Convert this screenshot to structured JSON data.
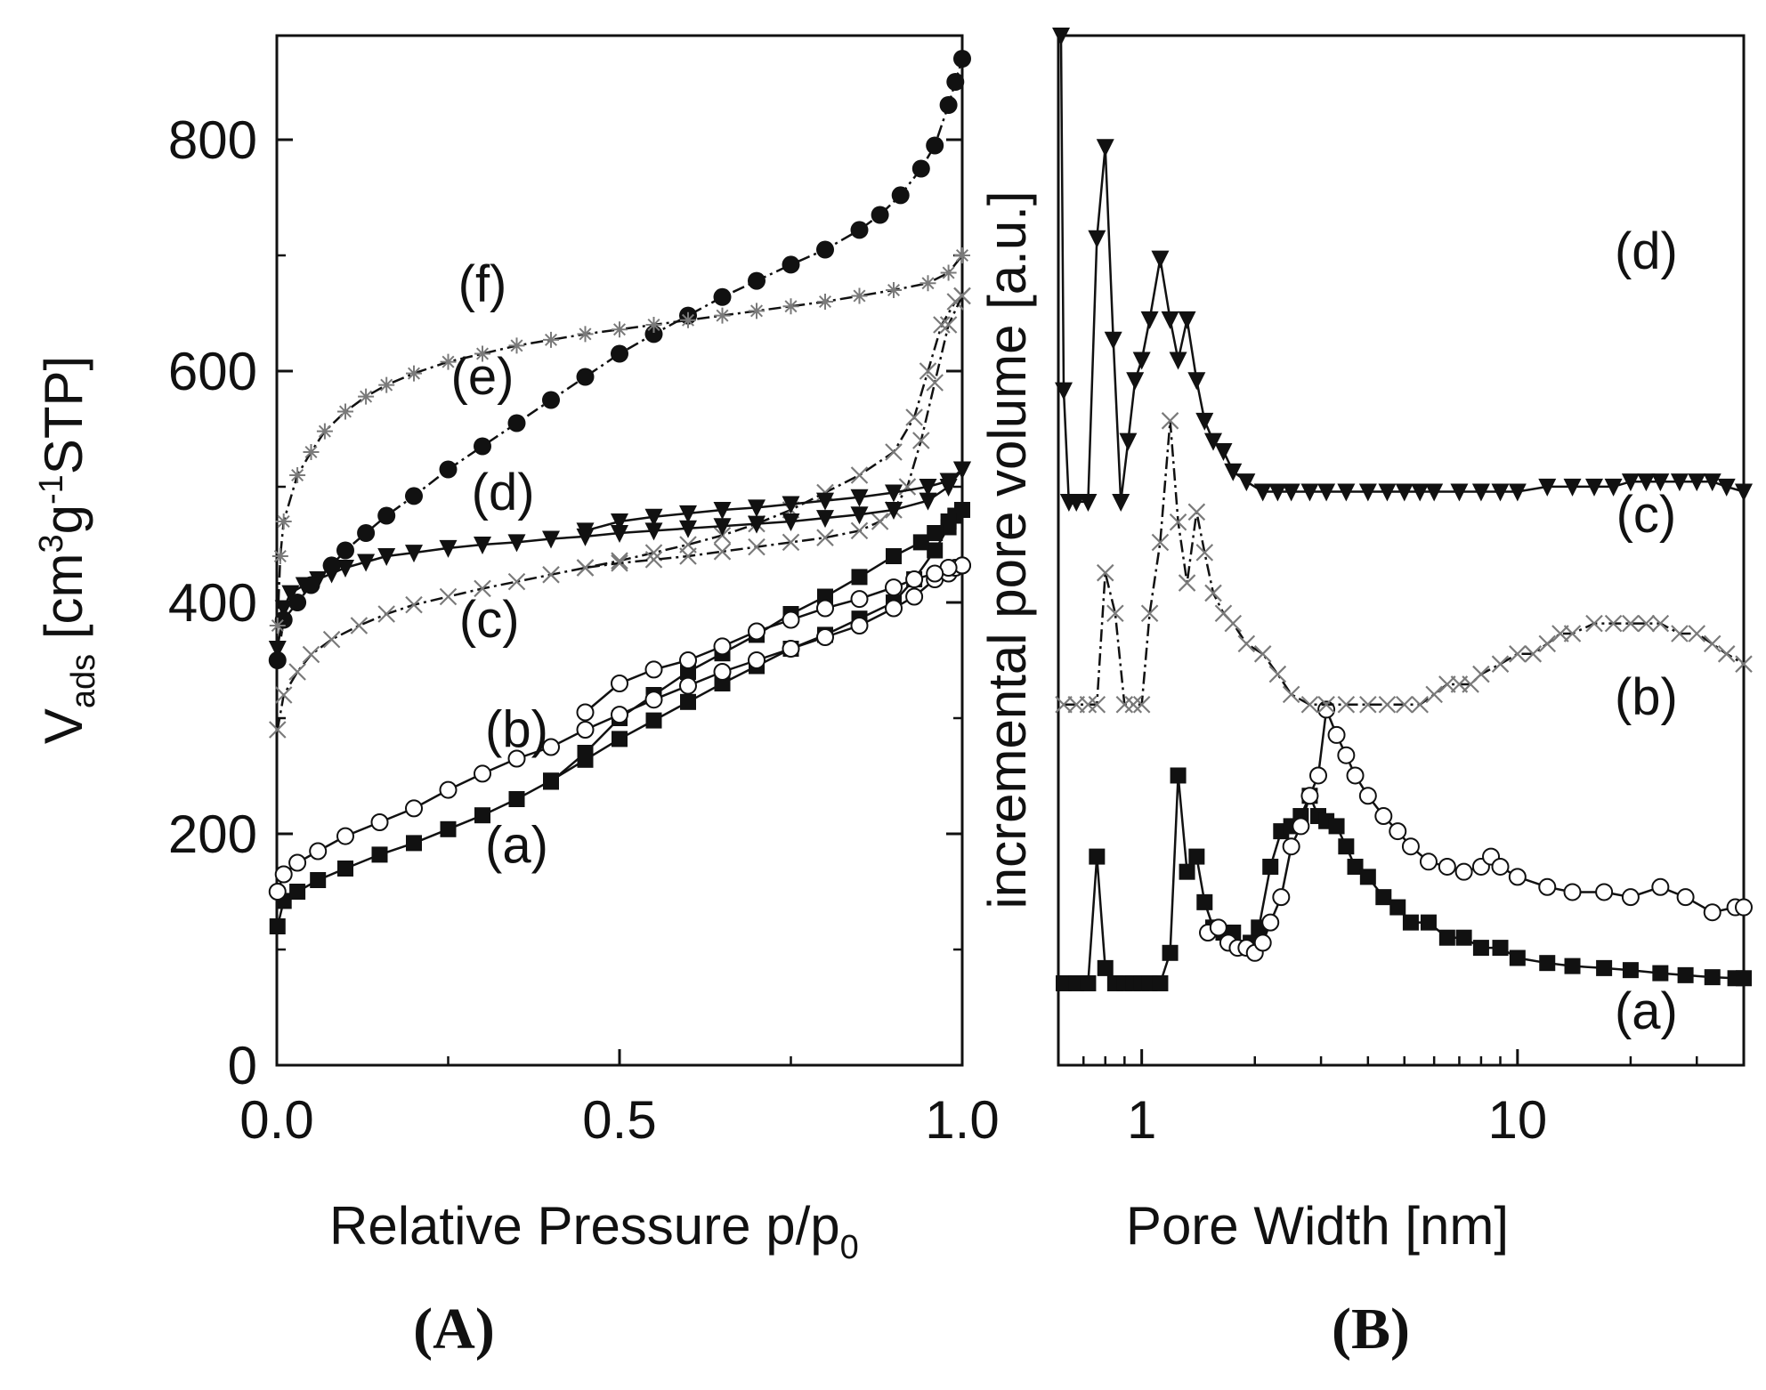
{
  "colors": {
    "ink": "#111111",
    "background": "#ffffff",
    "gray_marker": "#7a7a7a"
  },
  "chart_data": [
    {
      "panel": "A",
      "type": "scatter",
      "panel_label": {
        "open": "(",
        "letter": "A",
        "close": ")"
      },
      "xlabel": {
        "main": "Relative Pressure p/p",
        "sub": "0"
      },
      "ylabel": {
        "v": "V",
        "v_sub": "ads",
        "unit_a": " [cm",
        "sup_3": "3",
        "unit_b": "g",
        "sup_m1": "-1",
        "unit_c": "STP]"
      },
      "xlim": [
        0.0,
        1.0
      ],
      "ylim": [
        0,
        890
      ],
      "xticks": [
        0.0,
        0.5,
        1.0
      ],
      "xtick_labels": [
        "0.0",
        "0.5",
        "1.0"
      ],
      "yticks": [
        0,
        200,
        400,
        600,
        800
      ],
      "ytick_labels": [
        "0",
        "200",
        "400",
        "600",
        "800"
      ],
      "series": [
        {
          "name": "(a)",
          "marker": "square-filled",
          "adsorption": {
            "x": [
              0.001,
              0.01,
              0.03,
              0.06,
              0.1,
              0.15,
              0.2,
              0.25,
              0.3,
              0.35,
              0.4,
              0.45,
              0.5,
              0.55,
              0.6,
              0.65,
              0.7,
              0.75,
              0.8,
              0.85,
              0.9,
              0.93,
              0.96,
              0.98,
              0.99,
              1.0
            ],
            "y": [
              120,
              142,
              150,
              160,
              170,
              182,
              192,
              204,
              216,
              230,
              246,
              264,
              282,
              298,
              314,
              330,
              345,
              360,
              372,
              386,
              400,
              420,
              445,
              465,
              475,
              480
            ]
          },
          "desorption": {
            "x": [
              1.0,
              0.98,
              0.96,
              0.94,
              0.9,
              0.85,
              0.8,
              0.75,
              0.7,
              0.65,
              0.6,
              0.55,
              0.5,
              0.45,
              0.4
            ],
            "y": [
              480,
              470,
              460,
              452,
              440,
              422,
              405,
              390,
              372,
              356,
              340,
              320,
              300,
              270,
              245
            ]
          },
          "label_pos": [
            0.35,
            175
          ]
        },
        {
          "name": "(b)",
          "marker": "circle-open",
          "adsorption": {
            "x": [
              0.001,
              0.01,
              0.03,
              0.06,
              0.1,
              0.15,
              0.2,
              0.25,
              0.3,
              0.35,
              0.4,
              0.45,
              0.5,
              0.55,
              0.6,
              0.65,
              0.7,
              0.75,
              0.8,
              0.85,
              0.9,
              0.93,
              0.96,
              0.98,
              0.99,
              1.0
            ],
            "y": [
              150,
              165,
              175,
              185,
              198,
              210,
              222,
              238,
              252,
              265,
              275,
              290,
              303,
              316,
              328,
              340,
              350,
              360,
              370,
              380,
              395,
              405,
              420,
              425,
              430,
              432
            ]
          },
          "desorption": {
            "x": [
              1.0,
              0.98,
              0.96,
              0.93,
              0.9,
              0.85,
              0.8,
              0.75,
              0.7,
              0.65,
              0.6,
              0.55,
              0.5,
              0.45
            ],
            "y": [
              432,
              430,
              425,
              420,
              413,
              403,
              395,
              385,
              375,
              362,
              350,
              342,
              330,
              305
            ]
          },
          "label_pos": [
            0.35,
            275
          ]
        },
        {
          "name": "(c)",
          "marker": "x",
          "adsorption": {
            "x": [
              0.001,
              0.01,
              0.03,
              0.05,
              0.08,
              0.12,
              0.16,
              0.2,
              0.25,
              0.3,
              0.35,
              0.4,
              0.45,
              0.5,
              0.55,
              0.6,
              0.65,
              0.7,
              0.75,
              0.8,
              0.85,
              0.9,
              0.93,
              0.95,
              0.97,
              0.99,
              1.0
            ],
            "y": [
              290,
              320,
              340,
              355,
              368,
              380,
              390,
              398,
              405,
              412,
              418,
              424,
              430,
              436,
              443,
              450,
              458,
              468,
              480,
              495,
              510,
              530,
              560,
              600,
              640,
              660,
              665
            ]
          },
          "desorption": {
            "x": [
              1.0,
              0.98,
              0.96,
              0.94,
              0.92,
              0.9,
              0.88,
              0.85,
              0.8,
              0.75,
              0.7,
              0.65,
              0.6,
              0.55,
              0.5,
              0.45
            ],
            "y": [
              665,
              640,
              590,
              540,
              500,
              480,
              470,
              462,
              456,
              452,
              448,
              444,
              440,
              437,
              434,
              430
            ]
          },
          "label_pos": [
            0.31,
            370
          ]
        },
        {
          "name": "(d)",
          "marker": "triangle-down-filled",
          "adsorption": {
            "x": [
              0.001,
              0.01,
              0.02,
              0.04,
              0.06,
              0.08,
              0.1,
              0.13,
              0.16,
              0.2,
              0.25,
              0.3,
              0.35,
              0.4,
              0.45,
              0.5,
              0.55,
              0.6,
              0.65,
              0.7,
              0.75,
              0.8,
              0.85,
              0.9,
              0.95,
              0.98,
              1.0
            ],
            "y": [
              360,
              395,
              408,
              415,
              420,
              425,
              430,
              435,
              440,
              443,
              447,
              450,
              452,
              455,
              457,
              460,
              462,
              464,
              466,
              468,
              470,
              473,
              476,
              480,
              488,
              500,
              515
            ]
          },
          "desorption": {
            "x": [
              1.0,
              0.98,
              0.95,
              0.9,
              0.85,
              0.8,
              0.75,
              0.7,
              0.65,
              0.6,
              0.55,
              0.5,
              0.45
            ],
            "y": [
              515,
              505,
              500,
              495,
              491,
              488,
              485,
              482,
              480,
              477,
              474,
              470,
              462
            ]
          },
          "label_pos": [
            0.33,
            480
          ]
        },
        {
          "name": "(e)",
          "marker": "circle-filled",
          "adsorption": {
            "x": [
              0.001,
              0.01,
              0.03,
              0.05,
              0.08,
              0.1,
              0.13,
              0.16,
              0.2,
              0.25,
              0.3,
              0.35,
              0.4,
              0.45,
              0.5,
              0.55,
              0.6,
              0.65,
              0.7,
              0.75,
              0.8,
              0.85,
              0.88,
              0.91,
              0.94,
              0.96,
              0.98,
              0.99,
              1.0
            ],
            "y": [
              350,
              385,
              400,
              415,
              432,
              445,
              460,
              475,
              492,
              515,
              535,
              555,
              575,
              595,
              615,
              632,
              648,
              664,
              678,
              692,
              705,
              722,
              735,
              752,
              775,
              795,
              830,
              850,
              870
            ]
          },
          "desorption": null,
          "label_pos": [
            0.3,
            580
          ]
        },
        {
          "name": "(f)",
          "marker": "asterisk",
          "adsorption": {
            "x": [
              0.001,
              0.005,
              0.01,
              0.03,
              0.05,
              0.07,
              0.1,
              0.13,
              0.16,
              0.2,
              0.25,
              0.3,
              0.35,
              0.4,
              0.45,
              0.5,
              0.55,
              0.6,
              0.65,
              0.7,
              0.75,
              0.8,
              0.85,
              0.9,
              0.95,
              0.98,
              1.0
            ],
            "y": [
              380,
              440,
              470,
              510,
              530,
              548,
              565,
              578,
              588,
              598,
              608,
              615,
              622,
              627,
              632,
              636,
              640,
              644,
              648,
              652,
              656,
              660,
              665,
              670,
              676,
              685,
              700
            ]
          },
          "desorption": null,
          "label_pos": [
            0.3,
            660
          ]
        }
      ]
    },
    {
      "panel": "B",
      "type": "line",
      "panel_label": {
        "open": "(",
        "letter": "B",
        "close": ")"
      },
      "xlabel": "Pore Width [nm]",
      "ylabel": "incremental pore volume [a.u.]",
      "xscale": "log",
      "xlim": [
        0.6,
        40
      ],
      "ylim": [
        0,
        100
      ],
      "xtick_labels_at": [
        1,
        10
      ],
      "xtick_labels": [
        "1",
        "10"
      ],
      "series": [
        {
          "name": "(a)",
          "marker": "square-filled",
          "x": [
            0.62,
            0.67,
            0.72,
            0.76,
            0.8,
            0.85,
            0.9,
            0.95,
            1.0,
            1.05,
            1.12,
            1.19,
            1.25,
            1.32,
            1.4,
            1.47,
            1.55,
            1.65,
            1.75,
            1.85,
            1.95,
            2.05,
            2.2,
            2.35,
            2.5,
            2.65,
            2.8,
            2.95,
            3.1,
            3.3,
            3.5,
            3.7,
            4.0,
            4.4,
            4.8,
            5.2,
            5.8,
            6.5,
            7.2,
            8.0,
            9.0,
            10.0,
            12.0,
            14.0,
            17.0,
            20.0,
            24.0,
            28.0,
            33.0,
            38.0,
            40.0
          ],
          "y": [
            6.5,
            6.5,
            6.5,
            19,
            8,
            6.5,
            6.5,
            6.5,
            6.5,
            6.5,
            6.5,
            9.5,
            27,
            17.5,
            19,
            14.5,
            12,
            11.5,
            11.5,
            10,
            10.5,
            12,
            18,
            21.5,
            22,
            23,
            25,
            23,
            22.5,
            22,
            20,
            18,
            17,
            15,
            14,
            12.5,
            12.5,
            11,
            11,
            10,
            10,
            9,
            8.5,
            8.2,
            8,
            7.8,
            7.5,
            7.3,
            7.1,
            7,
            7
          ]
        },
        {
          "name": "(b)",
          "marker": "circle-open",
          "x": [
            1.5,
            1.6,
            1.7,
            1.8,
            1.9,
            2.0,
            2.1,
            2.2,
            2.35,
            2.5,
            2.65,
            2.8,
            2.95,
            3.1,
            3.3,
            3.5,
            3.7,
            4.0,
            4.4,
            4.8,
            5.2,
            5.8,
            6.5,
            7.2,
            8.0,
            8.5,
            9.0,
            10.0,
            12.0,
            14.0,
            17.0,
            20.0,
            24.0,
            28.0,
            33.0,
            38.0,
            40.0
          ],
          "y": [
            11.5,
            12,
            10.5,
            10,
            10,
            9.5,
            10.5,
            12.5,
            15,
            20,
            22,
            25,
            27,
            33.5,
            31,
            29,
            27,
            25,
            23,
            21.5,
            20,
            18.5,
            18,
            17.5,
            18,
            19,
            18,
            17,
            16,
            15.5,
            15.5,
            15,
            16,
            15,
            13.5,
            14,
            14
          ]
        },
        {
          "name": "(c)",
          "marker": "x",
          "x": [
            0.62,
            0.67,
            0.72,
            0.76,
            0.8,
            0.85,
            0.9,
            0.95,
            1.0,
            1.05,
            1.12,
            1.19,
            1.25,
            1.32,
            1.4,
            1.47,
            1.55,
            1.65,
            1.75,
            1.9,
            2.1,
            2.3,
            2.5,
            2.8,
            3.1,
            3.5,
            4.0,
            4.5,
            5.0,
            5.5,
            6.0,
            6.5,
            7.0,
            7.5,
            8.0,
            9.0,
            10.0,
            11.0,
            12.0,
            13.0,
            14.0,
            16.0,
            18.0,
            20.0,
            22.0,
            24.0,
            27.0,
            30.0,
            33.0,
            36.0,
            40.0
          ],
          "y": [
            34,
            34,
            34,
            34,
            47,
            43,
            34,
            34,
            34,
            43,
            50,
            62,
            52,
            46,
            53,
            49,
            45,
            43,
            42,
            40,
            39,
            37,
            35,
            34,
            34,
            34,
            34,
            34,
            34,
            34,
            35,
            36,
            36,
            36,
            37,
            38,
            39,
            39,
            40,
            41,
            41,
            42,
            42,
            42,
            42,
            42,
            41,
            41,
            40,
            39,
            38
          ]
        },
        {
          "name": "(d)",
          "marker": "triangle-down-filled",
          "x": [
            0.61,
            0.62,
            0.64,
            0.67,
            0.72,
            0.76,
            0.8,
            0.84,
            0.88,
            0.92,
            0.96,
            1.0,
            1.05,
            1.12,
            1.19,
            1.25,
            1.32,
            1.4,
            1.47,
            1.55,
            1.65,
            1.75,
            1.9,
            2.1,
            2.3,
            2.5,
            2.8,
            3.1,
            3.5,
            4.0,
            4.5,
            5.0,
            5.5,
            6.0,
            7.0,
            8.0,
            9.0,
            10.0,
            12.0,
            14.0,
            16.0,
            18.0,
            20.0,
            22.0,
            24.0,
            27.0,
            30.0,
            33.0,
            36.0,
            40.0
          ],
          "y": [
            100,
            65,
            54,
            54,
            54,
            80,
            89,
            70,
            54,
            60,
            66,
            68,
            72,
            78,
            72,
            68,
            72,
            66,
            62,
            60,
            59,
            57,
            56,
            55,
            55,
            55,
            55,
            55,
            55,
            55,
            55,
            55,
            55,
            55,
            55,
            55,
            55,
            55,
            55.5,
            55.5,
            55.5,
            55.5,
            56,
            56,
            56,
            56,
            56,
            56,
            55.5,
            55
          ]
        }
      ]
    }
  ]
}
